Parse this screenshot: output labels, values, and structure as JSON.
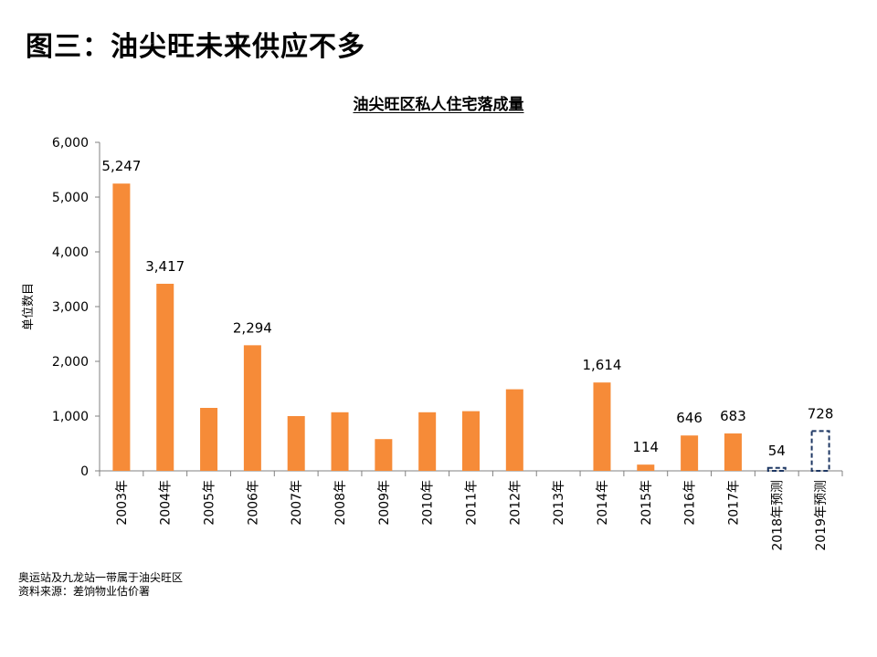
{
  "page_title": "图三：油尖旺未来供应不多",
  "chart_data": {
    "type": "bar",
    "title": "油尖旺区私人住宅落成量",
    "ylabel": "单位数目",
    "xlabel": "",
    "ylim": [
      0,
      6000
    ],
    "yticks": [
      "0",
      "1,000",
      "2,000",
      "3,000",
      "4,000",
      "5,000",
      "6,000"
    ],
    "ytick_values": [
      0,
      1000,
      2000,
      3000,
      4000,
      5000,
      6000
    ],
    "categories": [
      "2003年",
      "2004年",
      "2005年",
      "2006年",
      "2007年",
      "2008年",
      "2009年",
      "2010年",
      "2011年",
      "2012年",
      "2013年",
      "2014年",
      "2015年",
      "2016年",
      "2017年",
      "2018年预测",
      "2019年预测"
    ],
    "values": [
      5247,
      3417,
      1150,
      2294,
      1000,
      1070,
      580,
      1070,
      1090,
      1490,
      0,
      1614,
      114,
      646,
      683,
      54,
      728
    ],
    "data_labels": [
      "5,247",
      "3,417",
      "",
      "2,294",
      "",
      "",
      "",
      "",
      "",
      "",
      "",
      "1,614",
      "114",
      "646",
      "683",
      "54",
      "728"
    ],
    "forecast": [
      false,
      false,
      false,
      false,
      false,
      false,
      false,
      false,
      false,
      false,
      false,
      false,
      false,
      false,
      false,
      true,
      true
    ],
    "bar_color": "#F68B38",
    "forecast_color": "#1F3864"
  },
  "notes": {
    "line1": "奥运站及九龙站一带属于油尖旺区",
    "line2": "资料来源：差饷物业估价署"
  }
}
